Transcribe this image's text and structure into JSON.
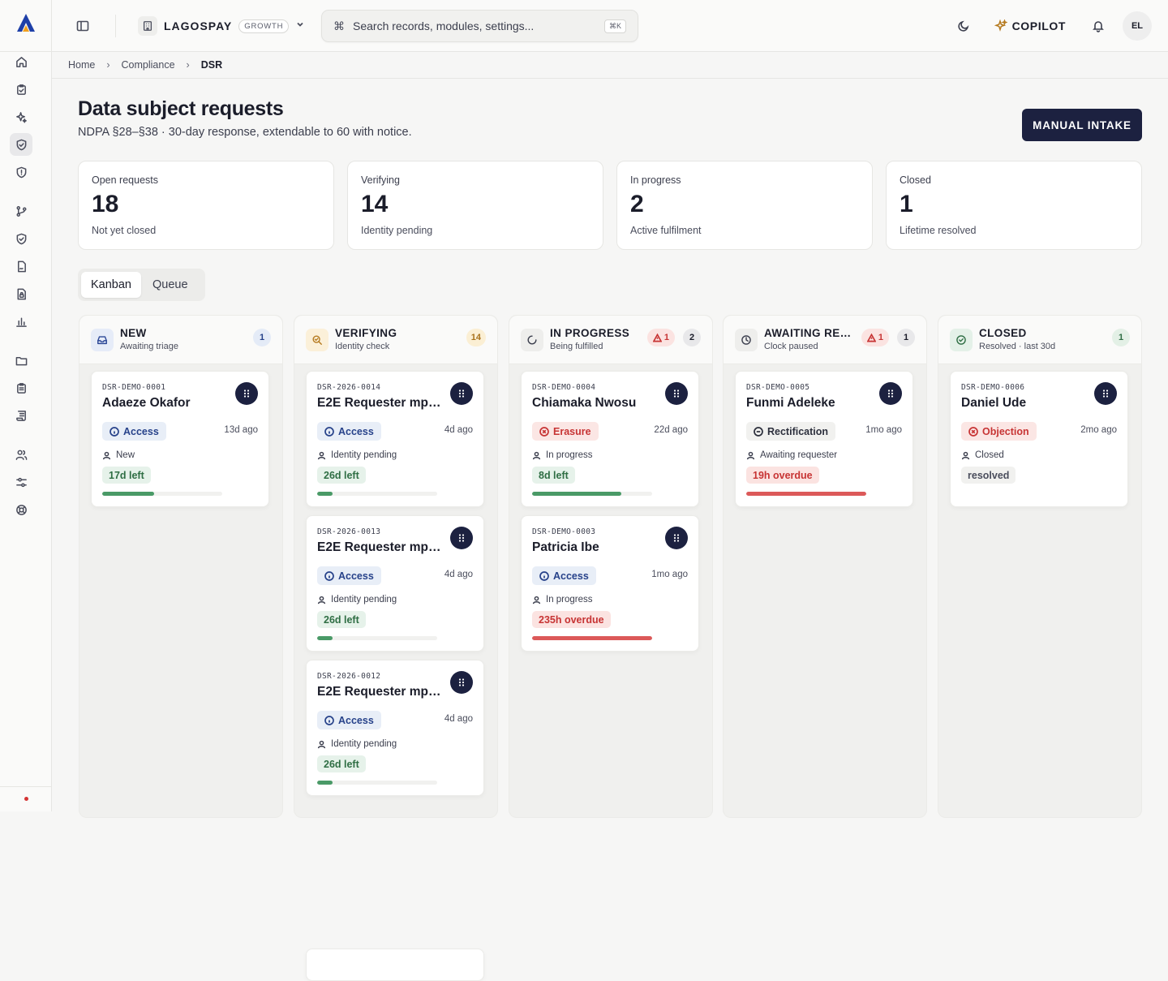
{
  "topbar": {
    "org_name": "LAGOSPAY",
    "org_plan": "GROWTH",
    "search_placeholder": "Search records, modules, settings...",
    "search_shortcut": "⌘K",
    "copilot_label": "COPILOT",
    "avatar_initials": "EL"
  },
  "breadcrumb": [
    "Home",
    "Compliance",
    "DSR"
  ],
  "page": {
    "title": "Data subject requests",
    "subtitle": "NDPA §28–§38 · 30-day response, extendable to 60 with notice.",
    "primary_action": "MANUAL INTAKE"
  },
  "stats": [
    {
      "label": "Open requests",
      "value": "18",
      "hint": "Not yet closed"
    },
    {
      "label": "Verifying",
      "value": "14",
      "hint": "Identity pending"
    },
    {
      "label": "In progress",
      "value": "2",
      "hint": "Active fulfilment"
    },
    {
      "label": "Closed",
      "value": "1",
      "hint": "Lifetime resolved"
    }
  ],
  "view_tabs": [
    "Kanban",
    "Queue"
  ],
  "columns": [
    {
      "title": "NEW",
      "subtitle": "Awaiting triage",
      "count": "1",
      "warn": "",
      "cards": [
        {
          "id": "DSR-DEMO-0001",
          "name": "Adaeze Okafor",
          "type": "Access",
          "ago": "13d ago",
          "stage": "New",
          "due": "17d left",
          "progress": 0.43
        }
      ]
    },
    {
      "title": "VERIFYING",
      "subtitle": "Identity check",
      "count": "14",
      "warn": "",
      "cards": [
        {
          "id": "DSR-2026-0014",
          "name": "E2E Requester mpc…",
          "type": "Access",
          "ago": "4d ago",
          "stage": "Identity pending",
          "due": "26d left",
          "progress": 0.13
        },
        {
          "id": "DSR-2026-0013",
          "name": "E2E Requester mpc…",
          "type": "Access",
          "ago": "4d ago",
          "stage": "Identity pending",
          "due": "26d left",
          "progress": 0.13
        },
        {
          "id": "DSR-2026-0012",
          "name": "E2E Requester mpcl…",
          "type": "Access",
          "ago": "4d ago",
          "stage": "Identity pending",
          "due": "26d left",
          "progress": 0.13
        }
      ]
    },
    {
      "title": "IN PROGRESS",
      "subtitle": "Being fulfilled",
      "count": "2",
      "warn": "1",
      "cards": [
        {
          "id": "DSR-DEMO-0004",
          "name": "Chiamaka Nwosu",
          "type": "Erasure",
          "ago": "22d ago",
          "stage": "In progress",
          "due": "8d left",
          "progress": 0.74
        },
        {
          "id": "DSR-DEMO-0003",
          "name": "Patricia Ibe",
          "type": "Access",
          "ago": "1mo ago",
          "stage": "In progress",
          "due": "235h overdue",
          "progress": 1
        }
      ]
    },
    {
      "title": "AWAITING RE…",
      "subtitle": "Clock paused",
      "count": "1",
      "warn": "1",
      "cards": [
        {
          "id": "DSR-DEMO-0005",
          "name": "Funmi Adeleke",
          "type": "Rectification",
          "ago": "1mo ago",
          "stage": "Awaiting requester",
          "due": "19h overdue",
          "progress": 1
        }
      ]
    },
    {
      "title": "CLOSED",
      "subtitle": "Resolved · last 30d",
      "count": "1",
      "warn": "",
      "cards": [
        {
          "id": "DSR-DEMO-0006",
          "name": "Daniel Ude",
          "type": "Objection",
          "ago": "2mo ago",
          "stage": "Closed",
          "due": "resolved",
          "progress": 0
        }
      ]
    }
  ]
}
